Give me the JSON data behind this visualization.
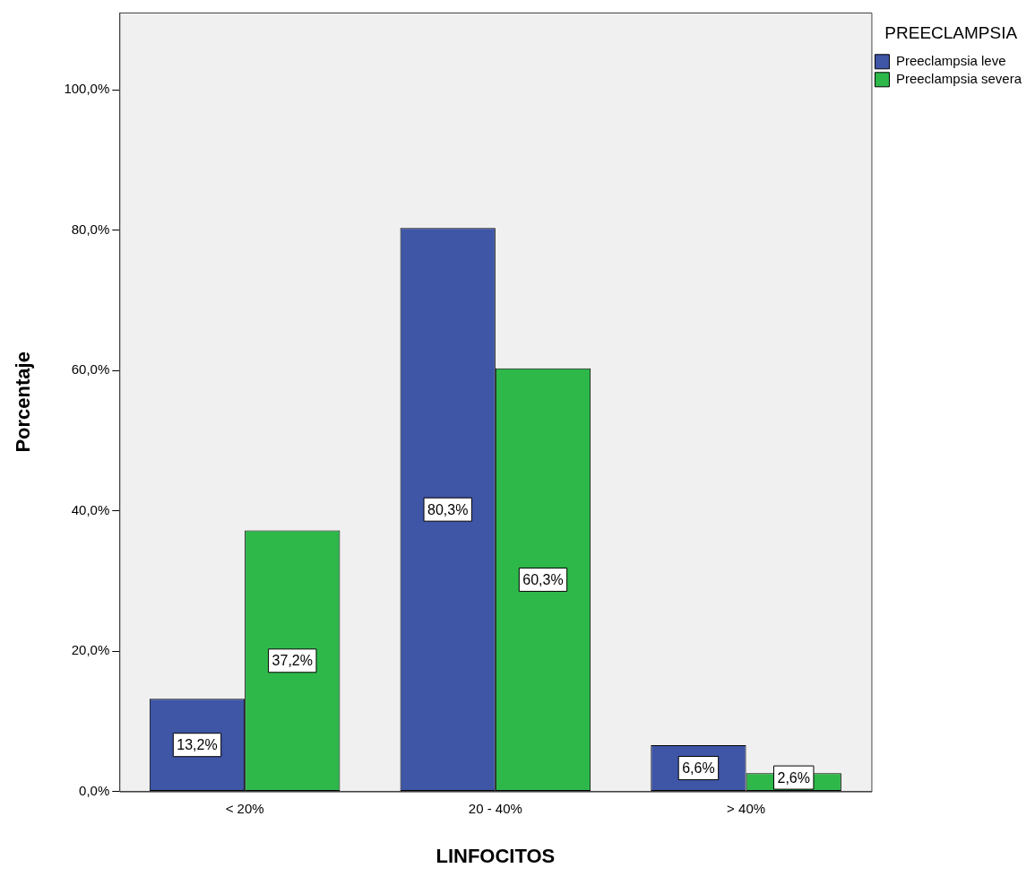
{
  "chart_data": {
    "type": "bar",
    "xlabel": "LINFOCITOS",
    "ylabel": "Porcentaje",
    "legend_title": "PREECLAMPSIA",
    "categories": [
      "< 20%",
      "20 - 40%",
      "> 40%"
    ],
    "series": [
      {
        "name": "Preeclampsia leve",
        "color": "#3f55a6",
        "values": [
          13.2,
          80.3,
          6.6
        ],
        "value_labels": [
          "13,2%",
          "80,3%",
          "6,6%"
        ]
      },
      {
        "name": "Preeclampsia severa",
        "color": "#2eb84a",
        "values": [
          37.2,
          60.3,
          2.6
        ],
        "value_labels": [
          "37,2%",
          "60,3%",
          "2,6%"
        ]
      }
    ],
    "ylim": [
      0,
      111
    ],
    "yticks": [
      {
        "value": 0,
        "label": "0,0%"
      },
      {
        "value": 20,
        "label": "20,0%"
      },
      {
        "value": 40,
        "label": "40,0%"
      },
      {
        "value": 60,
        "label": "60,0%"
      },
      {
        "value": 80,
        "label": "80,0%"
      },
      {
        "value": 100,
        "label": "100,0%"
      }
    ],
    "grid": false,
    "legend": "top right"
  }
}
